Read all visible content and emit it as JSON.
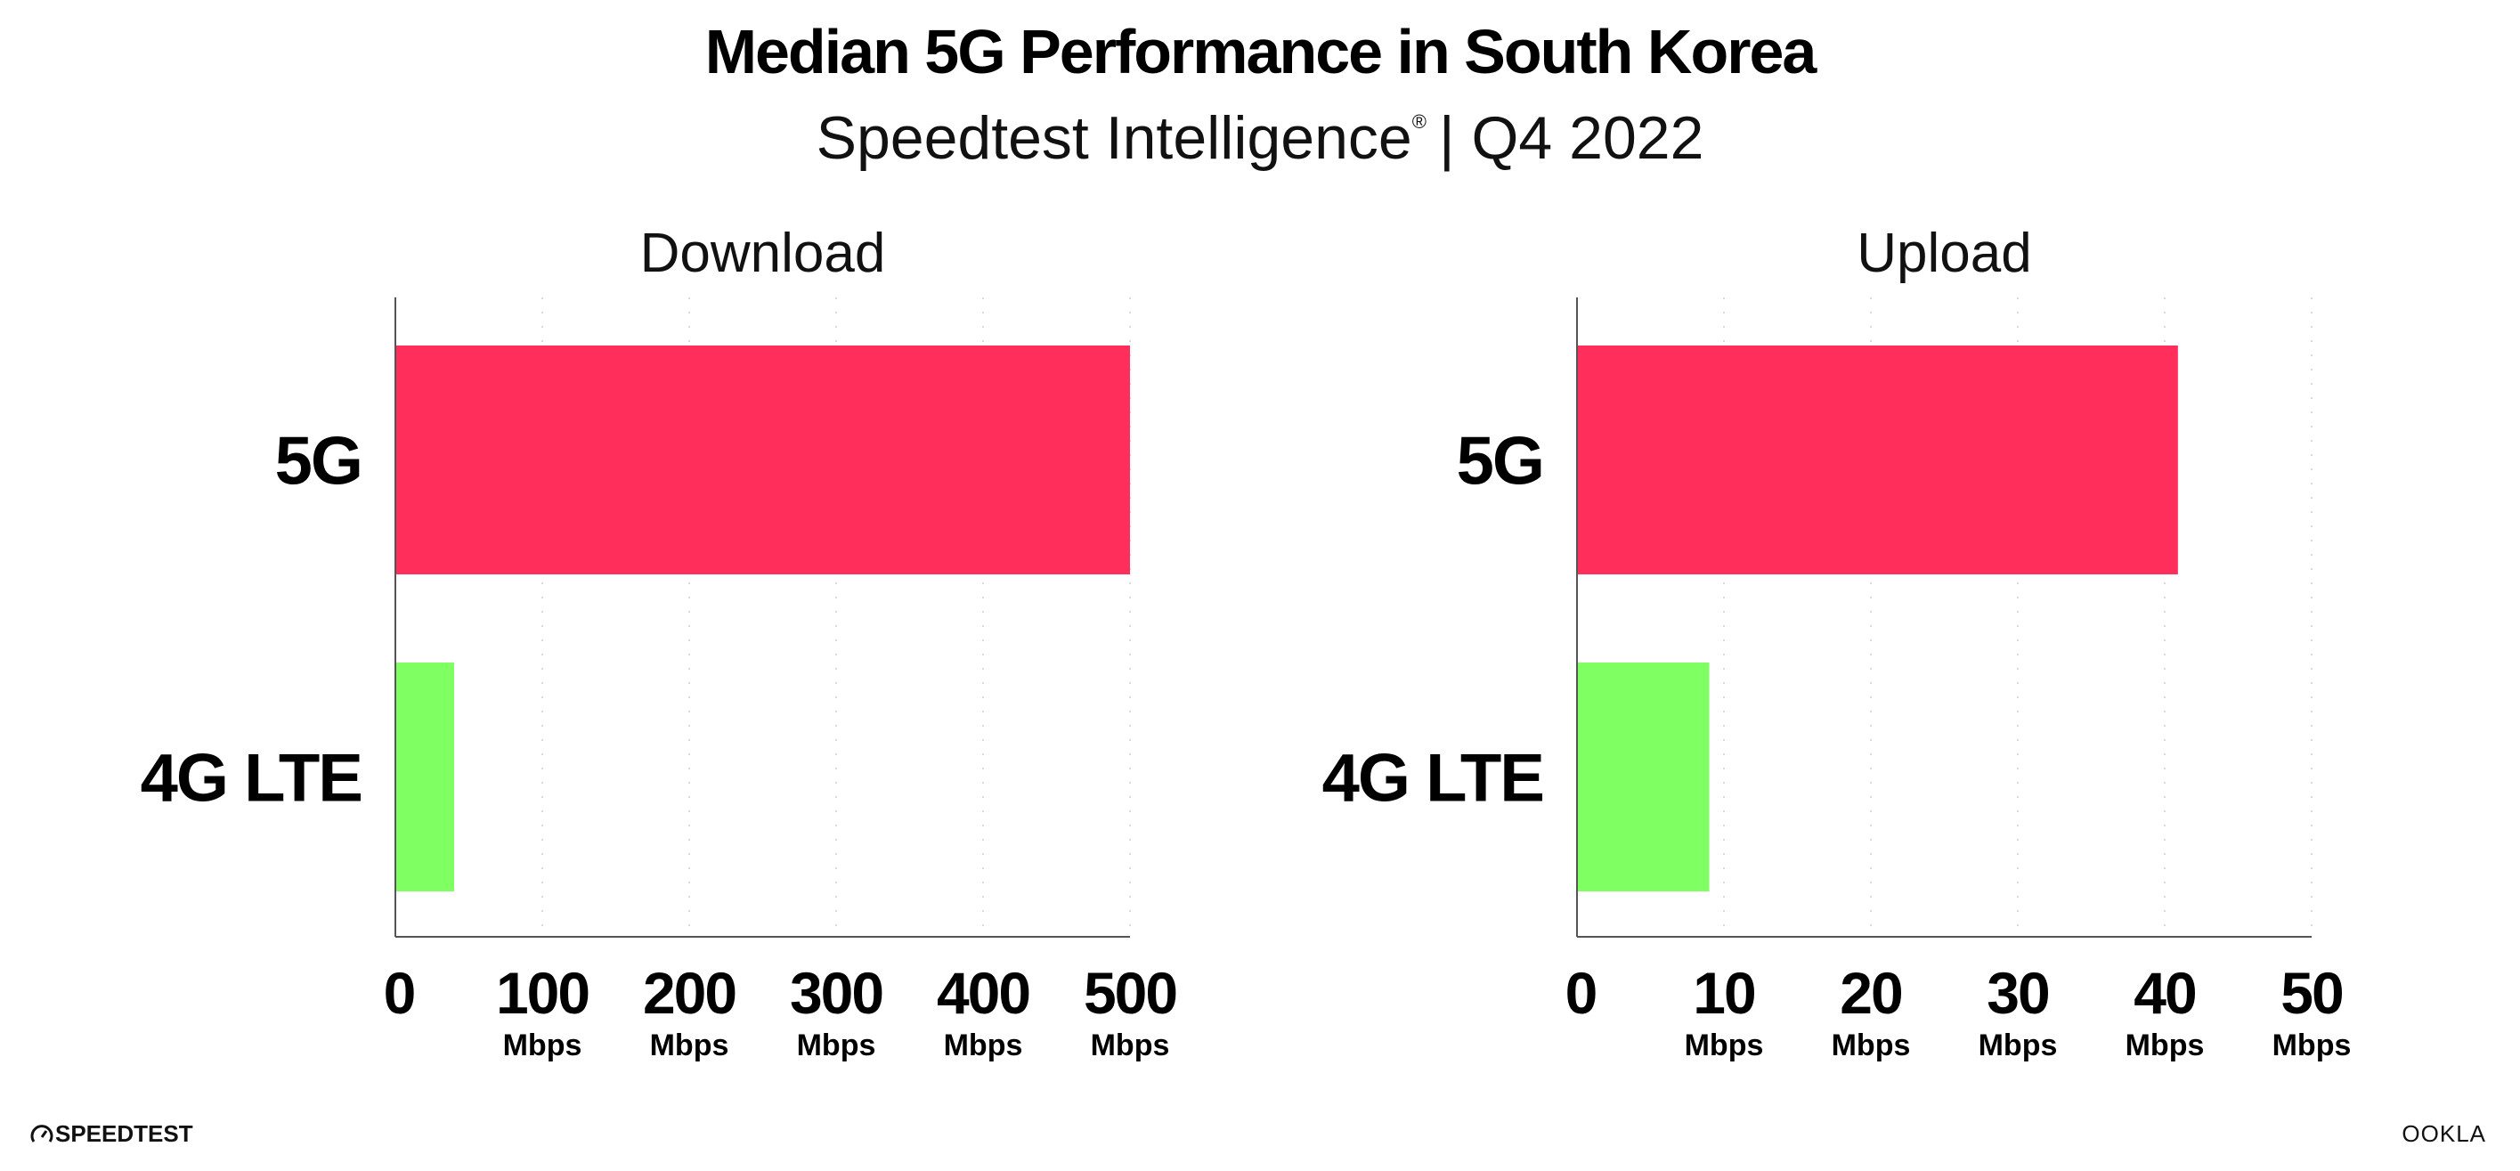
{
  "header": {
    "title": "Median 5G Performance in South Korea",
    "subtitle": "Speedtest Intelligence",
    "subtitle_mark": "®",
    "subtitle_period": "| Q4 2022"
  },
  "footer": {
    "left_logo": "SPEEDTEST",
    "right_logo": "OOKLA"
  },
  "colors": {
    "5G": "#ff2e5b",
    "4G LTE": "#80ff63",
    "grid": "#d9d9e6",
    "axis": "#555555"
  },
  "chart_data": [
    {
      "type": "bar",
      "orientation": "horizontal",
      "title": "Download",
      "categories": [
        "5G",
        "4G LTE"
      ],
      "values": [
        500,
        40
      ],
      "xlim": [
        0,
        500
      ],
      "ticks": [
        "0",
        "100",
        "200",
        "300",
        "400",
        "500"
      ],
      "tick_values": [
        0,
        100,
        200,
        300,
        400,
        500
      ],
      "tick_unit": "Mbps",
      "grid": "vertical dotted",
      "legend": "none"
    },
    {
      "type": "bar",
      "orientation": "horizontal",
      "title": "Upload",
      "categories": [
        "5G",
        "4G LTE"
      ],
      "values": [
        40.9,
        9.0
      ],
      "xlim": [
        0,
        50
      ],
      "ticks": [
        "0",
        "10",
        "20",
        "30",
        "40",
        "50"
      ],
      "tick_values": [
        0,
        10,
        20,
        30,
        40,
        50
      ],
      "tick_unit": "Mbps",
      "grid": "vertical dotted",
      "legend": "none"
    }
  ]
}
